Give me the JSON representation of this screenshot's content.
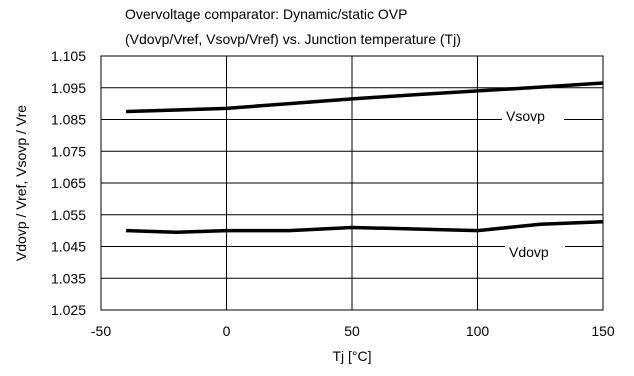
{
  "chart_data": {
    "type": "line",
    "title_lines": [
      "Overvoltage comparator: Dynamic/static OVP",
      "(Vdovp/Vref, Vsovp/Vref) vs. Junction temperature (Tj)"
    ],
    "xlabel": "Tj [°C]",
    "ylabel": "Vdovp / Vref, Vsovp / Vre",
    "xlim": [
      -50,
      150
    ],
    "ylim": [
      1.025,
      1.105
    ],
    "x_ticks": [
      -50,
      0,
      50,
      100,
      150
    ],
    "y_ticks": [
      1.105,
      1.095,
      1.085,
      1.075,
      1.065,
      1.055,
      1.045,
      1.035,
      1.025
    ],
    "x_tick_labels": [
      "-50",
      "0",
      "50",
      "100",
      "150"
    ],
    "y_tick_labels": [
      "1.105",
      "1.095",
      "1.085",
      "1.075",
      "1.065",
      "1.055",
      "1.045",
      "1.035",
      "1.025"
    ],
    "grid": true,
    "series": [
      {
        "name": "Vsovp",
        "x": [
          -40,
          -20,
          0,
          25,
          50,
          75,
          100,
          125,
          150
        ],
        "y": [
          1.0875,
          1.088,
          1.0885,
          1.09,
          1.0915,
          1.0928,
          1.094,
          1.0952,
          1.0965
        ]
      },
      {
        "name": "Vdovp",
        "x": [
          -40,
          -20,
          0,
          25,
          50,
          75,
          100,
          125,
          150
        ],
        "y": [
          1.05,
          1.0495,
          1.05,
          1.05,
          1.051,
          1.0505,
          1.05,
          1.052,
          1.0528
        ]
      }
    ]
  }
}
